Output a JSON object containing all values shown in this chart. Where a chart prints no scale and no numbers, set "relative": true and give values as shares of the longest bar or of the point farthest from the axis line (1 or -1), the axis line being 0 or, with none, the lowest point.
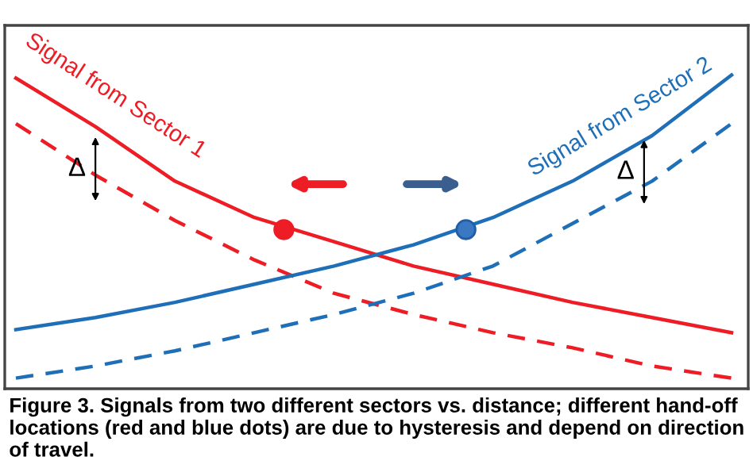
{
  "chart_data": {
    "type": "line",
    "relative": true,
    "categories": [
      null,
      null,
      null,
      null,
      null,
      null,
      null,
      null,
      null,
      null
    ],
    "series": [
      {
        "name": "Signal from Sector 1",
        "color": "#ee1c24",
        "line_style": "solid",
        "values": [
          0.99,
          0.83,
          0.65,
          0.53,
          0.45,
          0.37,
          0.31,
          0.25,
          0.2,
          0.15
        ]
      },
      {
        "color": "#ee1c24",
        "line_style": "dashed",
        "values": [
          0.84,
          0.67,
          0.52,
          0.39,
          0.28,
          0.21,
          0.15,
          0.1,
          0.04,
          0
        ]
      },
      {
        "name": "Signal from Sector 2",
        "color": "#1f6fb8",
        "line_style": "solid",
        "values": [
          0.16,
          0.2,
          0.25,
          0.31,
          0.37,
          0.44,
          0.53,
          0.65,
          0.8,
          1
        ]
      },
      {
        "color": "#1f6fb8",
        "line_style": "dashed",
        "values": [
          0,
          0.04,
          0.09,
          0.15,
          0.21,
          0.28,
          0.37,
          0.51,
          0.65,
          0.84
        ]
      }
    ],
    "annotations": [
      "Δ",
      "Δ",
      "Figure 3. Signals from two different sectors vs. distance; different hand-off locations (red and blue dots) are due to hysteresis and depend on direction of travel."
    ],
    "marker": "none",
    "legend": false
  }
}
